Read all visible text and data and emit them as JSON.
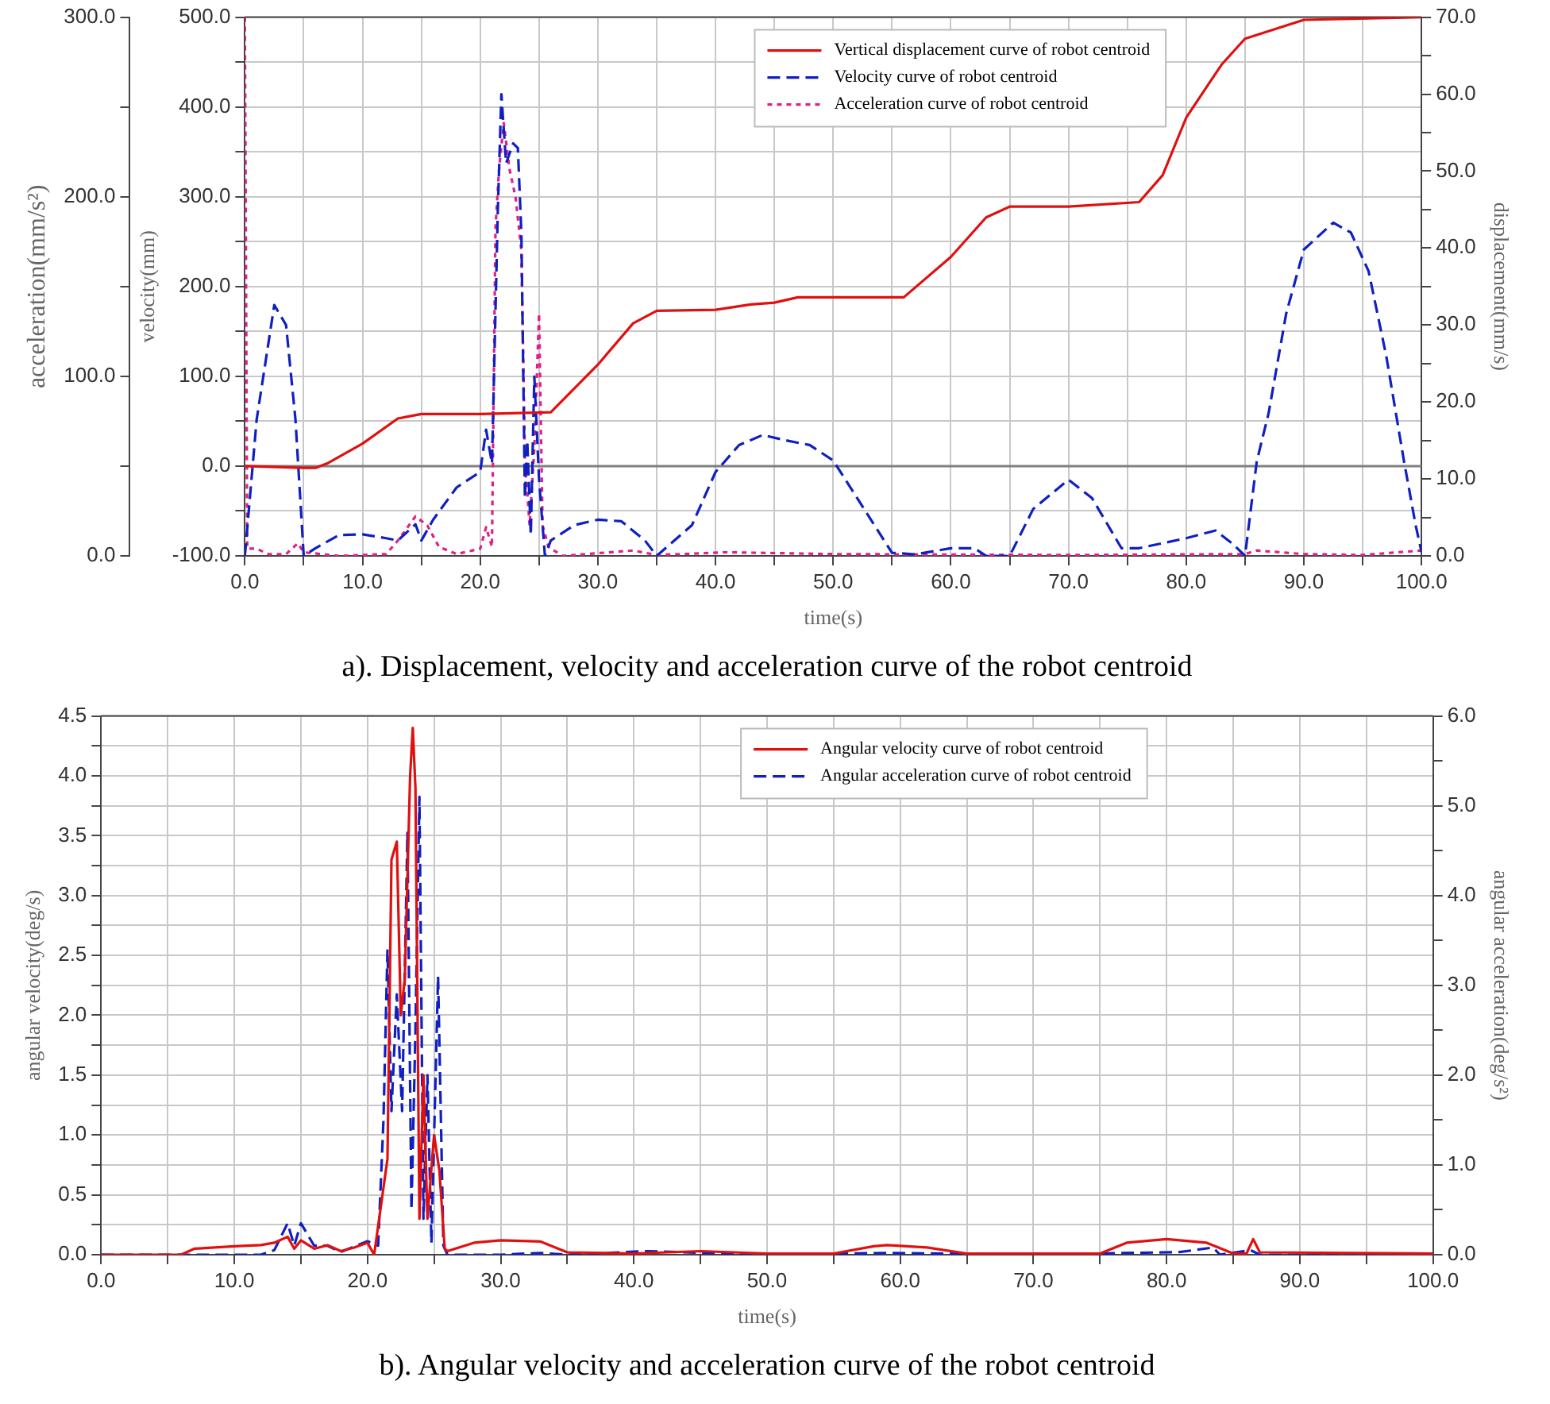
{
  "chart_data": [
    {
      "type": "line",
      "title": "a). Displacement, velocity and acceleration curve of the robot centroid",
      "xlabel": "time(s)",
      "ylabel": "velocity(mm)",
      "y2label": "displacement(mm/s)",
      "y3label": "acceleration(mm/s²)",
      "xlim": [
        0,
        100
      ],
      "ylim": [
        -100,
        500
      ],
      "y2lim": [
        0,
        70
      ],
      "y3lim": [
        0,
        300
      ],
      "xticks": [
        {
          "value": 0,
          "label": "0.0"
        },
        {
          "value": 5,
          "label": null
        },
        {
          "value": 10,
          "label": "10.0"
        },
        {
          "value": 15,
          "label": null
        },
        {
          "value": 20,
          "label": "20.0"
        },
        {
          "value": 25,
          "label": null
        },
        {
          "value": 30,
          "label": "30.0"
        },
        {
          "value": 35,
          "label": null
        },
        {
          "value": 40,
          "label": "40.0"
        },
        {
          "value": 45,
          "label": null
        },
        {
          "value": 50,
          "label": "50.0"
        },
        {
          "value": 55,
          "label": null
        },
        {
          "value": 60,
          "label": "60.0"
        },
        {
          "value": 65,
          "label": null
        },
        {
          "value": 70,
          "label": "70.0"
        },
        {
          "value": 75,
          "label": null
        },
        {
          "value": 80,
          "label": "80.0"
        },
        {
          "value": 85,
          "label": null
        },
        {
          "value": 90,
          "label": "90.0"
        },
        {
          "value": 95,
          "label": null
        },
        {
          "value": 100,
          "label": "100.0"
        }
      ],
      "yticks": [
        {
          "value": -100,
          "label": "-100.0"
        },
        {
          "value": -50,
          "label": null
        },
        {
          "value": 0,
          "label": "0.0"
        },
        {
          "value": 50,
          "label": null
        },
        {
          "value": 100,
          "label": "100.0"
        },
        {
          "value": 150,
          "label": null
        },
        {
          "value": 200,
          "label": "200.0"
        },
        {
          "value": 250,
          "label": null
        },
        {
          "value": 300,
          "label": "300.0"
        },
        {
          "value": 350,
          "label": null
        },
        {
          "value": 400,
          "label": "400.0"
        },
        {
          "value": 450,
          "label": null
        },
        {
          "value": 500,
          "label": "500.0"
        }
      ],
      "y2ticks": [
        {
          "value": 0,
          "label": "0.0"
        },
        {
          "value": 5,
          "label": null
        },
        {
          "value": 10,
          "label": "10.0"
        },
        {
          "value": 15,
          "label": null
        },
        {
          "value": 20,
          "label": "20.0"
        },
        {
          "value": 25,
          "label": null
        },
        {
          "value": 30,
          "label": "30.0"
        },
        {
          "value": 35,
          "label": null
        },
        {
          "value": 40,
          "label": "40.0"
        },
        {
          "value": 45,
          "label": null
        },
        {
          "value": 50,
          "label": "50.0"
        },
        {
          "value": 55,
          "label": null
        },
        {
          "value": 60,
          "label": "60.0"
        },
        {
          "value": 65,
          "label": null
        },
        {
          "value": 70,
          "label": "70.0"
        }
      ],
      "y3ticks": [
        {
          "value": 0,
          "label": "0.0"
        },
        {
          "value": 50,
          "label": null
        },
        {
          "value": 100,
          "label": "100.0"
        },
        {
          "value": 150,
          "label": null
        },
        {
          "value": 200,
          "label": "200.0"
        },
        {
          "value": 250,
          "label": null
        },
        {
          "value": 300,
          "label": "300.0"
        }
      ],
      "grid": true,
      "legend": "top",
      "ref_lines": [
        {
          "axis": "y",
          "value": 0,
          "color": "#808080"
        }
      ],
      "series": [
        {
          "name": "Vertical displacement curve of robot centroid",
          "color": "#e01010",
          "line_style": "solid",
          "x": [
            0,
            5,
            6,
            7,
            10,
            13,
            15,
            20,
            26,
            30,
            33,
            35,
            40,
            43,
            45,
            47,
            50,
            56,
            60,
            63,
            65,
            70,
            76,
            78,
            80,
            83,
            85,
            90,
            100
          ],
          "values": [
            0,
            -2,
            -2,
            3,
            25,
            53,
            58,
            58,
            60,
            113,
            159,
            173,
            174,
            180,
            182,
            188,
            188,
            188,
            233,
            277,
            289,
            289,
            294,
            324,
            388,
            447,
            476,
            497,
            500
          ]
        },
        {
          "name": "Velocity curve of robot centroid",
          "color": "#1020c0",
          "line_style": "dashed",
          "axis": "y2",
          "x": [
            0,
            1,
            2.5,
            3.5,
            4.3,
            5,
            6,
            8,
            10,
            12,
            13,
            14.5,
            15,
            16,
            18,
            20,
            20.5,
            21,
            21.5,
            21.8,
            22.2,
            22.8,
            23.2,
            23.5,
            23.8,
            24,
            24.3,
            24.6,
            25,
            25.5,
            26,
            28,
            30,
            32,
            34,
            35,
            38,
            40,
            42,
            44,
            46,
            48,
            50,
            52,
            55,
            57,
            60,
            62,
            63,
            65,
            67,
            70,
            72,
            74.5,
            76,
            80,
            82.5,
            84,
            85,
            86,
            87,
            88.5,
            90,
            92.5,
            94,
            95.5,
            97,
            98.5,
            99.5,
            100
          ],
          "values": [
            0,
            17.7,
            32.6,
            30,
            17.7,
            0,
            1,
            2.7,
            2.8,
            2.3,
            2,
            4.1,
            2,
            4.7,
            8.9,
            10.9,
            16.4,
            12,
            45,
            60,
            51,
            53.6,
            53,
            41.9,
            7.5,
            15,
            2.7,
            23.3,
            10,
            0,
            2,
            4,
            4.7,
            4.5,
            2,
            0,
            4,
            10.9,
            14.4,
            15.7,
            15,
            14.4,
            12.4,
            7.6,
            0.4,
            0.2,
            1,
            1,
            0,
            0,
            6.1,
            9.9,
            7.5,
            1,
            1,
            2.3,
            3.3,
            1.5,
            0,
            12.3,
            18.5,
            31.5,
            39.8,
            43.3,
            42,
            37,
            26,
            12.4,
            4,
            0.5
          ]
        },
        {
          "name": "Acceleration curve of robot centroid",
          "color": "#e0208a",
          "line_style": "dotted",
          "axis": "y3",
          "x": [
            0,
            0.2,
            1,
            2,
            3.5,
            4.5,
            5,
            8,
            12,
            13,
            14.5,
            15.5,
            16.5,
            18,
            20,
            20.5,
            21,
            21.3,
            21.6,
            22,
            22.5,
            23,
            23.5,
            23.8,
            24.2,
            24.6,
            25,
            25.3,
            25.8,
            27,
            33,
            35,
            41,
            50,
            70,
            85,
            86,
            90,
            95,
            100
          ],
          "values": [
            300,
            4,
            4,
            1,
            1,
            7,
            2,
            0,
            1,
            8.5,
            22,
            17,
            5,
            1,
            4,
            16,
            5,
            183,
            215,
            241,
            215,
            200,
            170,
            53,
            17,
            60,
            135,
            17,
            5,
            0,
            3,
            0.5,
            2,
            1,
            0.5,
            1,
            3,
            1,
            0.5,
            3
          ]
        }
      ]
    },
    {
      "type": "line",
      "title": "b). Angular velocity and acceleration curve of the robot centroid",
      "xlabel": "time(s)",
      "ylabel": "angular velocity(deg/s)",
      "y2label": "angular acceleration(deg/s²)",
      "xlim": [
        0,
        100
      ],
      "ylim": [
        0,
        4.5
      ],
      "y2lim": [
        0,
        6
      ],
      "xticks": [
        {
          "value": 0,
          "label": "0.0"
        },
        {
          "value": 5,
          "label": null
        },
        {
          "value": 10,
          "label": "10.0"
        },
        {
          "value": 15,
          "label": null
        },
        {
          "value": 20,
          "label": "20.0"
        },
        {
          "value": 25,
          "label": null
        },
        {
          "value": 30,
          "label": "30.0"
        },
        {
          "value": 35,
          "label": null
        },
        {
          "value": 40,
          "label": "40.0"
        },
        {
          "value": 45,
          "label": null
        },
        {
          "value": 50,
          "label": "50.0"
        },
        {
          "value": 55,
          "label": null
        },
        {
          "value": 60,
          "label": "60.0"
        },
        {
          "value": 65,
          "label": null
        },
        {
          "value": 70,
          "label": "70.0"
        },
        {
          "value": 75,
          "label": null
        },
        {
          "value": 80,
          "label": "80.0"
        },
        {
          "value": 85,
          "label": null
        },
        {
          "value": 90,
          "label": "90.0"
        },
        {
          "value": 95,
          "label": null
        },
        {
          "value": 100,
          "label": "100.0"
        }
      ],
      "yticks": [
        {
          "value": 0,
          "label": "0.0"
        },
        {
          "value": 0.25,
          "label": null
        },
        {
          "value": 0.5,
          "label": "0.5"
        },
        {
          "value": 0.75,
          "label": null
        },
        {
          "value": 1,
          "label": "1.0"
        },
        {
          "value": 1.25,
          "label": null
        },
        {
          "value": 1.5,
          "label": "1.5"
        },
        {
          "value": 1.75,
          "label": null
        },
        {
          "value": 2,
          "label": "2.0"
        },
        {
          "value": 2.25,
          "label": null
        },
        {
          "value": 2.5,
          "label": "2.5"
        },
        {
          "value": 2.75,
          "label": null
        },
        {
          "value": 3,
          "label": "3.0"
        },
        {
          "value": 3.25,
          "label": null
        },
        {
          "value": 3.5,
          "label": "3.5"
        },
        {
          "value": 3.75,
          "label": null
        },
        {
          "value": 4,
          "label": "4.0"
        },
        {
          "value": 4.25,
          "label": null
        },
        {
          "value": 4.5,
          "label": "4.5"
        }
      ],
      "y2ticks": [
        {
          "value": 0,
          "label": "0.0"
        },
        {
          "value": 0.5,
          "label": null
        },
        {
          "value": 1,
          "label": "1.0"
        },
        {
          "value": 1.5,
          "label": null
        },
        {
          "value": 2,
          "label": "2.0"
        },
        {
          "value": 2.5,
          "label": null
        },
        {
          "value": 3,
          "label": "3.0"
        },
        {
          "value": 3.5,
          "label": null
        },
        {
          "value": 4,
          "label": "4.0"
        },
        {
          "value": 4.5,
          "label": null
        },
        {
          "value": 5,
          "label": "5.0"
        },
        {
          "value": 5.5,
          "label": null
        },
        {
          "value": 6,
          "label": "6.0"
        }
      ],
      "grid": true,
      "legend": "top right",
      "series": [
        {
          "name": "Angular velocity curve of robot centroid",
          "color": "#e01010",
          "line_style": "solid",
          "x": [
            0,
            6,
            7,
            10,
            12,
            13,
            14,
            14.5,
            15,
            16,
            17,
            18,
            19,
            20,
            20.5,
            21,
            21.5,
            21.8,
            22.2,
            22.5,
            22.8,
            23.2,
            23.4,
            23.6,
            23.9,
            24.2,
            24.5,
            25,
            25.4,
            25.8,
            26,
            28,
            30,
            33,
            35,
            40,
            45,
            50,
            55,
            58,
            59,
            62,
            65,
            75,
            77,
            80,
            83,
            85,
            86,
            86.5,
            87,
            100
          ],
          "values": [
            0,
            0,
            0.05,
            0.07,
            0.08,
            0.1,
            0.15,
            0.05,
            0.12,
            0.05,
            0.08,
            0.03,
            0.06,
            0.1,
            0,
            0.4,
            0.8,
            3.3,
            3.45,
            2,
            2.3,
            4,
            4.4,
            3.9,
            0.3,
            1.5,
            0.3,
            1,
            0.7,
            0.05,
            0.03,
            0.1,
            0.12,
            0.11,
            0.02,
            0.01,
            0.03,
            0.01,
            0.01,
            0.07,
            0.08,
            0.06,
            0.01,
            0.01,
            0.1,
            0.13,
            0.1,
            0.01,
            0.01,
            0.13,
            0.02,
            0.01
          ]
        },
        {
          "name": "Angular acceleration curve of robot centroid",
          "color": "#1020c0",
          "line_style": "dashed",
          "axis": "y2",
          "x": [
            0,
            12,
            13,
            14,
            14.5,
            15,
            16,
            17,
            18,
            20,
            20.8,
            21.2,
            21.5,
            21.8,
            22.2,
            22.6,
            23,
            23.3,
            23.6,
            23.9,
            24.2,
            24.5,
            24.8,
            25.3,
            25.7,
            26,
            30,
            33,
            35,
            41,
            50,
            59,
            70,
            81,
            83.5,
            84,
            86.3,
            87,
            100
          ],
          "values": [
            0,
            0,
            0.05,
            0.35,
            0.1,
            0.35,
            0.1,
            0.1,
            0.03,
            0.15,
            0.1,
            1.5,
            3.4,
            1.6,
            2.9,
            1.6,
            4.7,
            0.5,
            2.5,
            5.1,
            0.4,
            2,
            0.13,
            3.1,
            0.1,
            0,
            0,
            0.02,
            0,
            0.04,
            0,
            0.02,
            0,
            0.03,
            0.08,
            0,
            0.05,
            0,
            0
          ]
        }
      ]
    }
  ]
}
